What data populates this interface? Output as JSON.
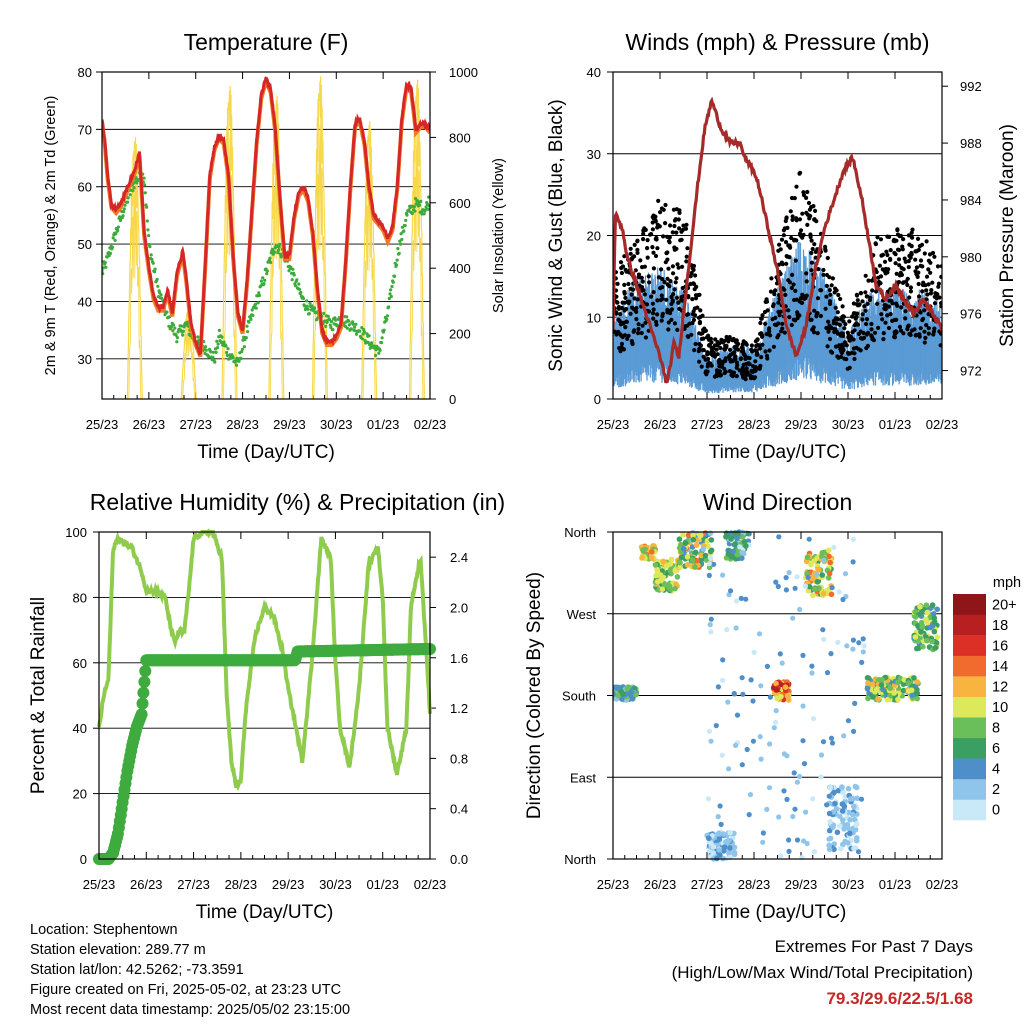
{
  "chart_data": [
    {
      "type": "line",
      "title": "Temperature (F)",
      "xlabel": "Time (Day/UTC)",
      "ylabel": "2m & 9m T (Red, Orange) & 2m Td (Green)",
      "ylabel_right": "Solar Insolation (Yellow)",
      "x_ticks": [
        "25/23",
        "26/23",
        "27/23",
        "28/23",
        "29/23",
        "30/23",
        "01/23",
        "02/23"
      ],
      "xlim": [
        0,
        7
      ],
      "ylim": [
        23,
        80
      ],
      "y_ticks": [
        30,
        40,
        50,
        60,
        70,
        80
      ],
      "ylim_right": [
        0,
        1000
      ],
      "y_ticks_right": [
        0,
        200,
        400,
        600,
        800,
        1000
      ],
      "grid": "horizontal at major ticks",
      "colors": {
        "t2m": "#d62728",
        "t9m": "#f07a24",
        "td": "#3cab3c",
        "solar": "#f7d84a"
      },
      "series": [
        {
          "key": "t2m",
          "x": [
            0,
            0.06,
            0.12,
            0.2,
            0.3,
            0.4,
            0.5,
            0.6,
            0.7,
            0.8,
            0.9,
            1.0,
            1.1,
            1.2,
            1.3,
            1.4,
            1.5,
            1.6,
            1.7,
            1.72,
            1.8,
            1.9,
            2.0,
            2.1,
            2.2,
            2.3,
            2.4,
            2.5,
            2.6,
            2.7,
            2.8,
            2.9,
            3.0,
            3.1,
            3.2,
            3.3,
            3.4,
            3.5,
            3.6,
            3.7,
            3.8,
            3.9,
            4.0,
            4.1,
            4.2,
            4.3,
            4.4,
            4.5,
            4.6,
            4.7,
            4.8,
            4.9,
            5.0,
            5.1,
            5.2,
            5.3,
            5.4,
            5.5,
            5.6,
            5.7,
            5.8,
            5.9,
            6.0,
            6.1,
            6.2,
            6.3,
            6.4,
            6.5,
            6.6,
            6.7,
            6.8,
            6.9,
            7.0
          ],
          "values": [
            72,
            68,
            62,
            57,
            56,
            57,
            59,
            61,
            63,
            66,
            52,
            46,
            41,
            39,
            39,
            42,
            38,
            45,
            48,
            49,
            44,
            36,
            33,
            31,
            46,
            62,
            67,
            69,
            68,
            62,
            48,
            38,
            35,
            44,
            56,
            68,
            76,
            79,
            77,
            70,
            58,
            48,
            48,
            55,
            59,
            60,
            58,
            52,
            42,
            35,
            33,
            33,
            34,
            36,
            47,
            60,
            71,
            72,
            68,
            60,
            55,
            54,
            53,
            51,
            53,
            60,
            72,
            78,
            77,
            70,
            71,
            71,
            70
          ]
        },
        {
          "key": "td",
          "x": [
            0,
            0.1,
            0.3,
            0.5,
            0.7,
            0.9,
            1.0,
            1.2,
            1.4,
            1.6,
            1.8,
            2.0,
            2.2,
            2.3,
            2.4,
            2.5,
            2.7,
            2.9,
            3.1,
            3.3,
            3.5,
            3.7,
            3.9,
            4.1,
            4.3,
            4.5,
            4.7,
            4.9,
            5.1,
            5.3,
            5.5,
            5.7,
            5.9,
            6.1,
            6.3,
            6.5,
            6.7,
            6.9,
            7.0
          ],
          "values": [
            45,
            47,
            52,
            57,
            61,
            62,
            50,
            42,
            37,
            34,
            36,
            33,
            32,
            31,
            30,
            34,
            31,
            29,
            35,
            40,
            45,
            50,
            48,
            44,
            40,
            38,
            37,
            36,
            37,
            36,
            35,
            33,
            31,
            38,
            48,
            55,
            57,
            56,
            58
          ]
        },
        {
          "key": "solar",
          "peaks": [
            0.7,
            1.85,
            2.72,
            3.72,
            4.65,
            5.7,
            6.72
          ],
          "peak_values": [
            820,
            290,
            980,
            950,
            1010,
            870,
            1000
          ]
        }
      ]
    },
    {
      "type": "scatter",
      "title": "Winds (mph) & Pressure (mb)",
      "xlabel": "Time (Day/UTC)",
      "ylabel": "Sonic Wind & Gust (Blue, Black)",
      "ylabel_right": "Station Pressure (Maroon)",
      "x_ticks": [
        "25/23",
        "26/23",
        "27/23",
        "28/23",
        "29/23",
        "30/23",
        "01/23",
        "02/23"
      ],
      "xlim": [
        0,
        7
      ],
      "ylim": [
        0,
        40
      ],
      "y_ticks": [
        0,
        10,
        20,
        30,
        40
      ],
      "ylim_right": [
        970,
        993
      ],
      "y_ticks_right": [
        972,
        976,
        980,
        984,
        988,
        992
      ],
      "grid": "horizontal at major ticks",
      "colors": {
        "wind": "#5b9bd5",
        "gust": "#000000",
        "pressure": "#a52a2a"
      },
      "wind_envelope": {
        "x": [
          0,
          0.5,
          1.0,
          1.5,
          2.0,
          2.5,
          3.0,
          3.5,
          4.0,
          4.5,
          5.0,
          5.5,
          6.0,
          6.5,
          7.0
        ],
        "typical": [
          6,
          9,
          10,
          8,
          3,
          4,
          4,
          8,
          12,
          9,
          5,
          8,
          8,
          8,
          7
        ]
      },
      "gust_envelope": {
        "x": [
          0,
          0.5,
          1.0,
          1.5,
          2.0,
          2.5,
          3.0,
          3.5,
          4.0,
          4.5,
          5.0,
          5.5,
          6.0,
          6.5,
          7.0
        ],
        "typical": [
          12,
          15,
          19,
          18,
          6,
          6,
          5,
          14,
          22,
          15,
          7,
          15,
          16,
          16,
          13
        ]
      },
      "series": [
        {
          "key": "pressure",
          "x": [
            0,
            0.05,
            0.2,
            0.3,
            0.5,
            0.7,
            0.9,
            1.0,
            1.15,
            1.3,
            1.4,
            1.6,
            1.8,
            1.95,
            2.1,
            2.3,
            2.5,
            2.7,
            2.8,
            3.0,
            3.1,
            3.3,
            3.5,
            3.7,
            3.9,
            4.1,
            4.3,
            4.5,
            4.7,
            4.9,
            5.1,
            5.3,
            5.5,
            5.6,
            5.8,
            6.0,
            6.2,
            6.4,
            6.6,
            6.8,
            7.0
          ],
          "values": [
            975,
            983,
            982,
            980,
            978,
            976,
            974,
            973,
            971,
            974,
            973,
            979,
            985,
            989,
            991,
            989,
            988,
            988,
            987,
            986,
            985,
            982,
            979,
            975,
            973,
            975,
            979,
            982,
            984,
            986,
            987,
            984,
            980,
            978,
            977,
            978,
            977,
            976,
            977,
            976,
            975
          ]
        }
      ]
    },
    {
      "type": "line",
      "title": "Relative Humidity (%) & Precipitation (in)",
      "xlabel": "Time (Day/UTC)",
      "ylabel": "Percent & Total Rainfall",
      "x_ticks": [
        "25/23",
        "26/23",
        "27/23",
        "28/23",
        "29/23",
        "30/23",
        "01/23",
        "02/23"
      ],
      "xlim": [
        0,
        7
      ],
      "ylim": [
        0,
        100
      ],
      "y_ticks": [
        0,
        20,
        40,
        60,
        80,
        100
      ],
      "ylim_right": [
        0,
        2.6
      ],
      "y_ticks_right": [
        "0.0",
        "0.4",
        "0.8",
        "1.2",
        "1.6",
        "2.0",
        "2.4"
      ],
      "grid": "horizontal at major ticks",
      "colors": {
        "rh": "#8fcc4e",
        "precip": "#3fab3f"
      },
      "series": [
        {
          "key": "rh",
          "x": [
            0,
            0.1,
            0.2,
            0.3,
            0.4,
            0.5,
            0.7,
            0.9,
            1.0,
            1.2,
            1.4,
            1.5,
            1.6,
            1.7,
            1.8,
            1.9,
            2.0,
            2.2,
            2.4,
            2.6,
            2.7,
            2.8,
            2.9,
            3.0,
            3.1,
            3.3,
            3.5,
            3.7,
            3.9,
            4.0,
            4.1,
            4.3,
            4.5,
            4.7,
            4.9,
            5.0,
            5.1,
            5.3,
            5.5,
            5.7,
            5.9,
            6.0,
            6.1,
            6.3,
            6.5,
            6.6,
            6.8,
            7.0
          ],
          "values": [
            40,
            50,
            55,
            95,
            98,
            97,
            95,
            88,
            82,
            82,
            80,
            72,
            66,
            70,
            69,
            82,
            98,
            100,
            100,
            92,
            50,
            30,
            22,
            24,
            45,
            68,
            77,
            74,
            62,
            52,
            45,
            30,
            60,
            98,
            92,
            60,
            40,
            28,
            52,
            90,
            95,
            80,
            40,
            26,
            40,
            78,
            92,
            45
          ]
        },
        {
          "key": "precip",
          "x": [
            0,
            0.2,
            0.3,
            0.4,
            0.5,
            0.6,
            0.7,
            0.8,
            0.9,
            1.0,
            4.15,
            4.2,
            7.0
          ],
          "values": [
            0,
            0,
            0.05,
            0.2,
            0.45,
            0.7,
            0.9,
            1.05,
            1.15,
            1.58,
            1.58,
            1.65,
            1.67
          ]
        }
      ]
    },
    {
      "type": "scatter",
      "title": "Wind Direction",
      "xlabel": "Time (Day/UTC)",
      "ylabel": "Direction (Colored By Speed)",
      "x_ticks": [
        "25/23",
        "26/23",
        "27/23",
        "28/23",
        "29/23",
        "30/23",
        "01/23",
        "02/23"
      ],
      "xlim": [
        0,
        7
      ],
      "ylim": [
        0,
        360
      ],
      "y_tick_labels": [
        "North",
        "East",
        "South",
        "West",
        "North"
      ],
      "grid": "horizontal at major ticks",
      "colorbar": {
        "title": "mph",
        "labels": [
          "0",
          "2",
          "4",
          "6",
          "8",
          "10",
          "12",
          "14",
          "16",
          "18",
          "20+"
        ],
        "colors": [
          "#c9e8f8",
          "#8fc5ea",
          "#4f8fc9",
          "#3b9e62",
          "#6bbf5a",
          "#dde85a",
          "#f7b43f",
          "#f26b2e",
          "#dc2f26",
          "#b81f20",
          "#8f1518"
        ]
      },
      "clusters": [
        {
          "x": [
            0,
            0.5
          ],
          "dir": [
            175,
            190
          ],
          "speed": [
            2,
            8
          ]
        },
        {
          "x": [
            0.6,
            0.9
          ],
          "dir": [
            330,
            345
          ],
          "speed": [
            8,
            14
          ]
        },
        {
          "x": [
            0.9,
            1.4
          ],
          "dir": [
            295,
            330
          ],
          "speed": [
            6,
            12
          ]
        },
        {
          "x": [
            1.4,
            2.1
          ],
          "dir": [
            320,
            360
          ],
          "speed": [
            2,
            14
          ]
        },
        {
          "x": [
            2.0,
            2.6
          ],
          "dir": [
            0,
            30
          ],
          "speed": [
            0,
            4
          ]
        },
        {
          "x": [
            2.4,
            2.9
          ],
          "dir": [
            330,
            360
          ],
          "speed": [
            0,
            8
          ]
        },
        {
          "x": [
            3.4,
            3.75
          ],
          "dir": [
            175,
            195
          ],
          "speed": [
            10,
            18
          ]
        },
        {
          "x": [
            4.1,
            4.65
          ],
          "dir": [
            290,
            340
          ],
          "speed": [
            6,
            14
          ]
        },
        {
          "x": [
            4.6,
            5.2
          ],
          "dir": [
            10,
            80
          ],
          "speed": [
            0,
            4
          ]
        },
        {
          "x": [
            5.4,
            6.5
          ],
          "dir": [
            175,
            200
          ],
          "speed": [
            4,
            12
          ]
        },
        {
          "x": [
            6.4,
            6.9
          ],
          "dir": [
            230,
            280
          ],
          "speed": [
            4,
            10
          ]
        }
      ]
    }
  ],
  "info": {
    "location": "Location: Stephentown",
    "elevation": "Station elevation: 289.77 m",
    "latlon": "Station lat/lon: 42.5262; -73.3591",
    "created": "Figure created on Fri, 2025-05-02, at 23:23 UTC",
    "recent": "Most recent data timestamp: 2025/05/02 23:15:00"
  },
  "extremes": {
    "title": "Extremes For Past 7 Days",
    "subtitle": "(High/Low/Max Wind/Total Precipitation)",
    "values": "79.3/29.6/22.5/1.68"
  }
}
